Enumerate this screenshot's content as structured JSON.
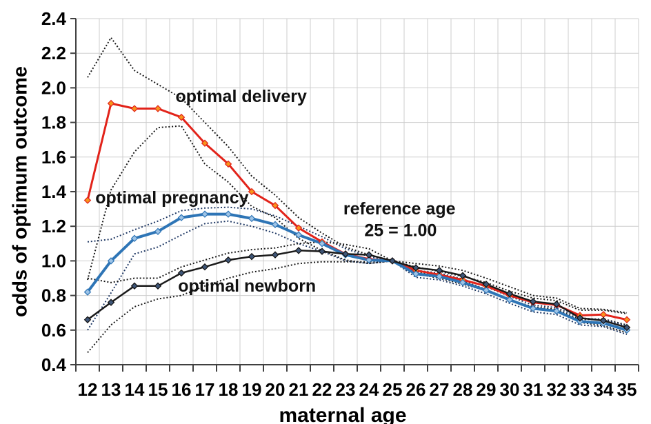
{
  "chart_data": {
    "type": "line",
    "title": "",
    "xlabel": "maternal age",
    "ylabel": "odds of optimum outcome",
    "x": [
      12,
      13,
      14,
      15,
      16,
      17,
      18,
      19,
      20,
      21,
      22,
      23,
      24,
      25,
      26,
      27,
      28,
      29,
      30,
      31,
      32,
      33,
      34,
      35
    ],
    "xlim": [
      11.5,
      35.5
    ],
    "ylim": [
      0.4,
      2.4
    ],
    "yticks": [
      2.4,
      2.2,
      2.0,
      1.8,
      1.6,
      1.4,
      1.2,
      1.0,
      0.8,
      0.6,
      0.4
    ],
    "grid": true,
    "grid_color": "#cdcdcd",
    "axis_color": "#404040",
    "reference_note": "reference age 25 = 1.00",
    "series": [
      {
        "name": "optimal delivery",
        "color": "#e2231a",
        "marker_fill": "#f7941d",
        "marker_stroke": "#e2231a",
        "line_width": 3,
        "ci_color": "#1a1a1a",
        "values": [
          1.35,
          1.91,
          1.88,
          1.88,
          1.83,
          1.68,
          1.56,
          1.4,
          1.32,
          1.19,
          1.11,
          1.04,
          1.01,
          1.0,
          0.945,
          0.92,
          0.89,
          0.855,
          0.8,
          0.76,
          0.745,
          0.685,
          0.69,
          0.66
        ],
        "ci_upper": [
          2.06,
          2.29,
          2.1,
          2.02,
          1.94,
          1.8,
          1.66,
          1.49,
          1.38,
          1.25,
          1.16,
          1.08,
          1.035,
          1.0,
          0.965,
          0.94,
          0.91,
          0.875,
          0.825,
          0.785,
          0.77,
          0.715,
          0.715,
          0.695
        ],
        "ci_lower": [
          0.89,
          1.41,
          1.63,
          1.77,
          1.78,
          1.56,
          1.455,
          1.315,
          1.25,
          1.13,
          1.06,
          1.005,
          0.985,
          1.0,
          0.925,
          0.9,
          0.865,
          0.83,
          0.775,
          0.735,
          0.72,
          0.66,
          0.665,
          0.63
        ]
      },
      {
        "name": "optimal pregnancy",
        "color": "#2e75b6",
        "marker_fill": "#9dc3e6",
        "marker_stroke": "#2e75b6",
        "line_width": 4,
        "ci_color": "#1f3864",
        "values": [
          0.82,
          1.0,
          1.13,
          1.17,
          1.25,
          1.27,
          1.27,
          1.245,
          1.21,
          1.15,
          1.1,
          1.035,
          1.005,
          1.0,
          0.925,
          0.91,
          0.875,
          0.83,
          0.775,
          0.725,
          0.71,
          0.65,
          0.64,
          0.6
        ],
        "ci_upper": [
          1.11,
          1.125,
          1.18,
          1.23,
          1.29,
          1.305,
          1.31,
          1.3,
          1.26,
          1.2,
          1.14,
          1.07,
          1.025,
          1.0,
          0.945,
          0.93,
          0.895,
          0.85,
          0.795,
          0.745,
          0.73,
          0.67,
          0.66,
          0.625
        ],
        "ci_lower": [
          0.6,
          0.815,
          1.04,
          1.08,
          1.15,
          1.215,
          1.23,
          1.2,
          1.16,
          1.1,
          1.055,
          1.0,
          0.985,
          1.0,
          0.905,
          0.89,
          0.855,
          0.81,
          0.755,
          0.705,
          0.69,
          0.63,
          0.62,
          0.575
        ]
      },
      {
        "name": "optimal newborn",
        "color": "#1a1a1a",
        "marker_fill": "#3f5677",
        "marker_stroke": "#111111",
        "line_width": 2.5,
        "ci_color": "#1a1a1a",
        "values": [
          0.66,
          0.76,
          0.855,
          0.855,
          0.93,
          0.965,
          1.005,
          1.025,
          1.035,
          1.06,
          1.055,
          1.04,
          1.035,
          1.0,
          0.96,
          0.945,
          0.915,
          0.865,
          0.81,
          0.765,
          0.75,
          0.67,
          0.655,
          0.615
        ],
        "ci_upper": [
          0.9,
          0.875,
          0.9,
          0.9,
          0.965,
          1.005,
          1.045,
          1.065,
          1.075,
          1.1,
          1.11,
          1.095,
          1.07,
          1.0,
          0.985,
          0.97,
          0.945,
          0.9,
          0.85,
          0.8,
          0.785,
          0.725,
          0.72,
          0.7
        ],
        "ci_lower": [
          0.47,
          0.63,
          0.735,
          0.78,
          0.8,
          0.855,
          0.9,
          0.935,
          0.955,
          0.985,
          0.995,
          0.995,
          0.995,
          1.0,
          0.935,
          0.92,
          0.885,
          0.835,
          0.775,
          0.73,
          0.715,
          0.645,
          0.625,
          0.585
        ]
      }
    ],
    "annotations": [
      {
        "id": "label-optimal-delivery",
        "text": "optimal delivery",
        "x": 18.55,
        "y": 1.95
      },
      {
        "id": "label-optimal-pregnancy",
        "text": "optimal pregnancy",
        "x": 15.6,
        "y": 1.365
      },
      {
        "id": "label-optimal-newborn",
        "text": "optimal newborn",
        "x": 18.8,
        "y": 0.855
      },
      {
        "id": "label-reference-age-line1",
        "text": "reference age",
        "x": 25.3,
        "y": 1.3
      },
      {
        "id": "label-reference-age-line2",
        "text": "25 = 1.00",
        "x": 25.35,
        "y": 1.175
      }
    ]
  }
}
